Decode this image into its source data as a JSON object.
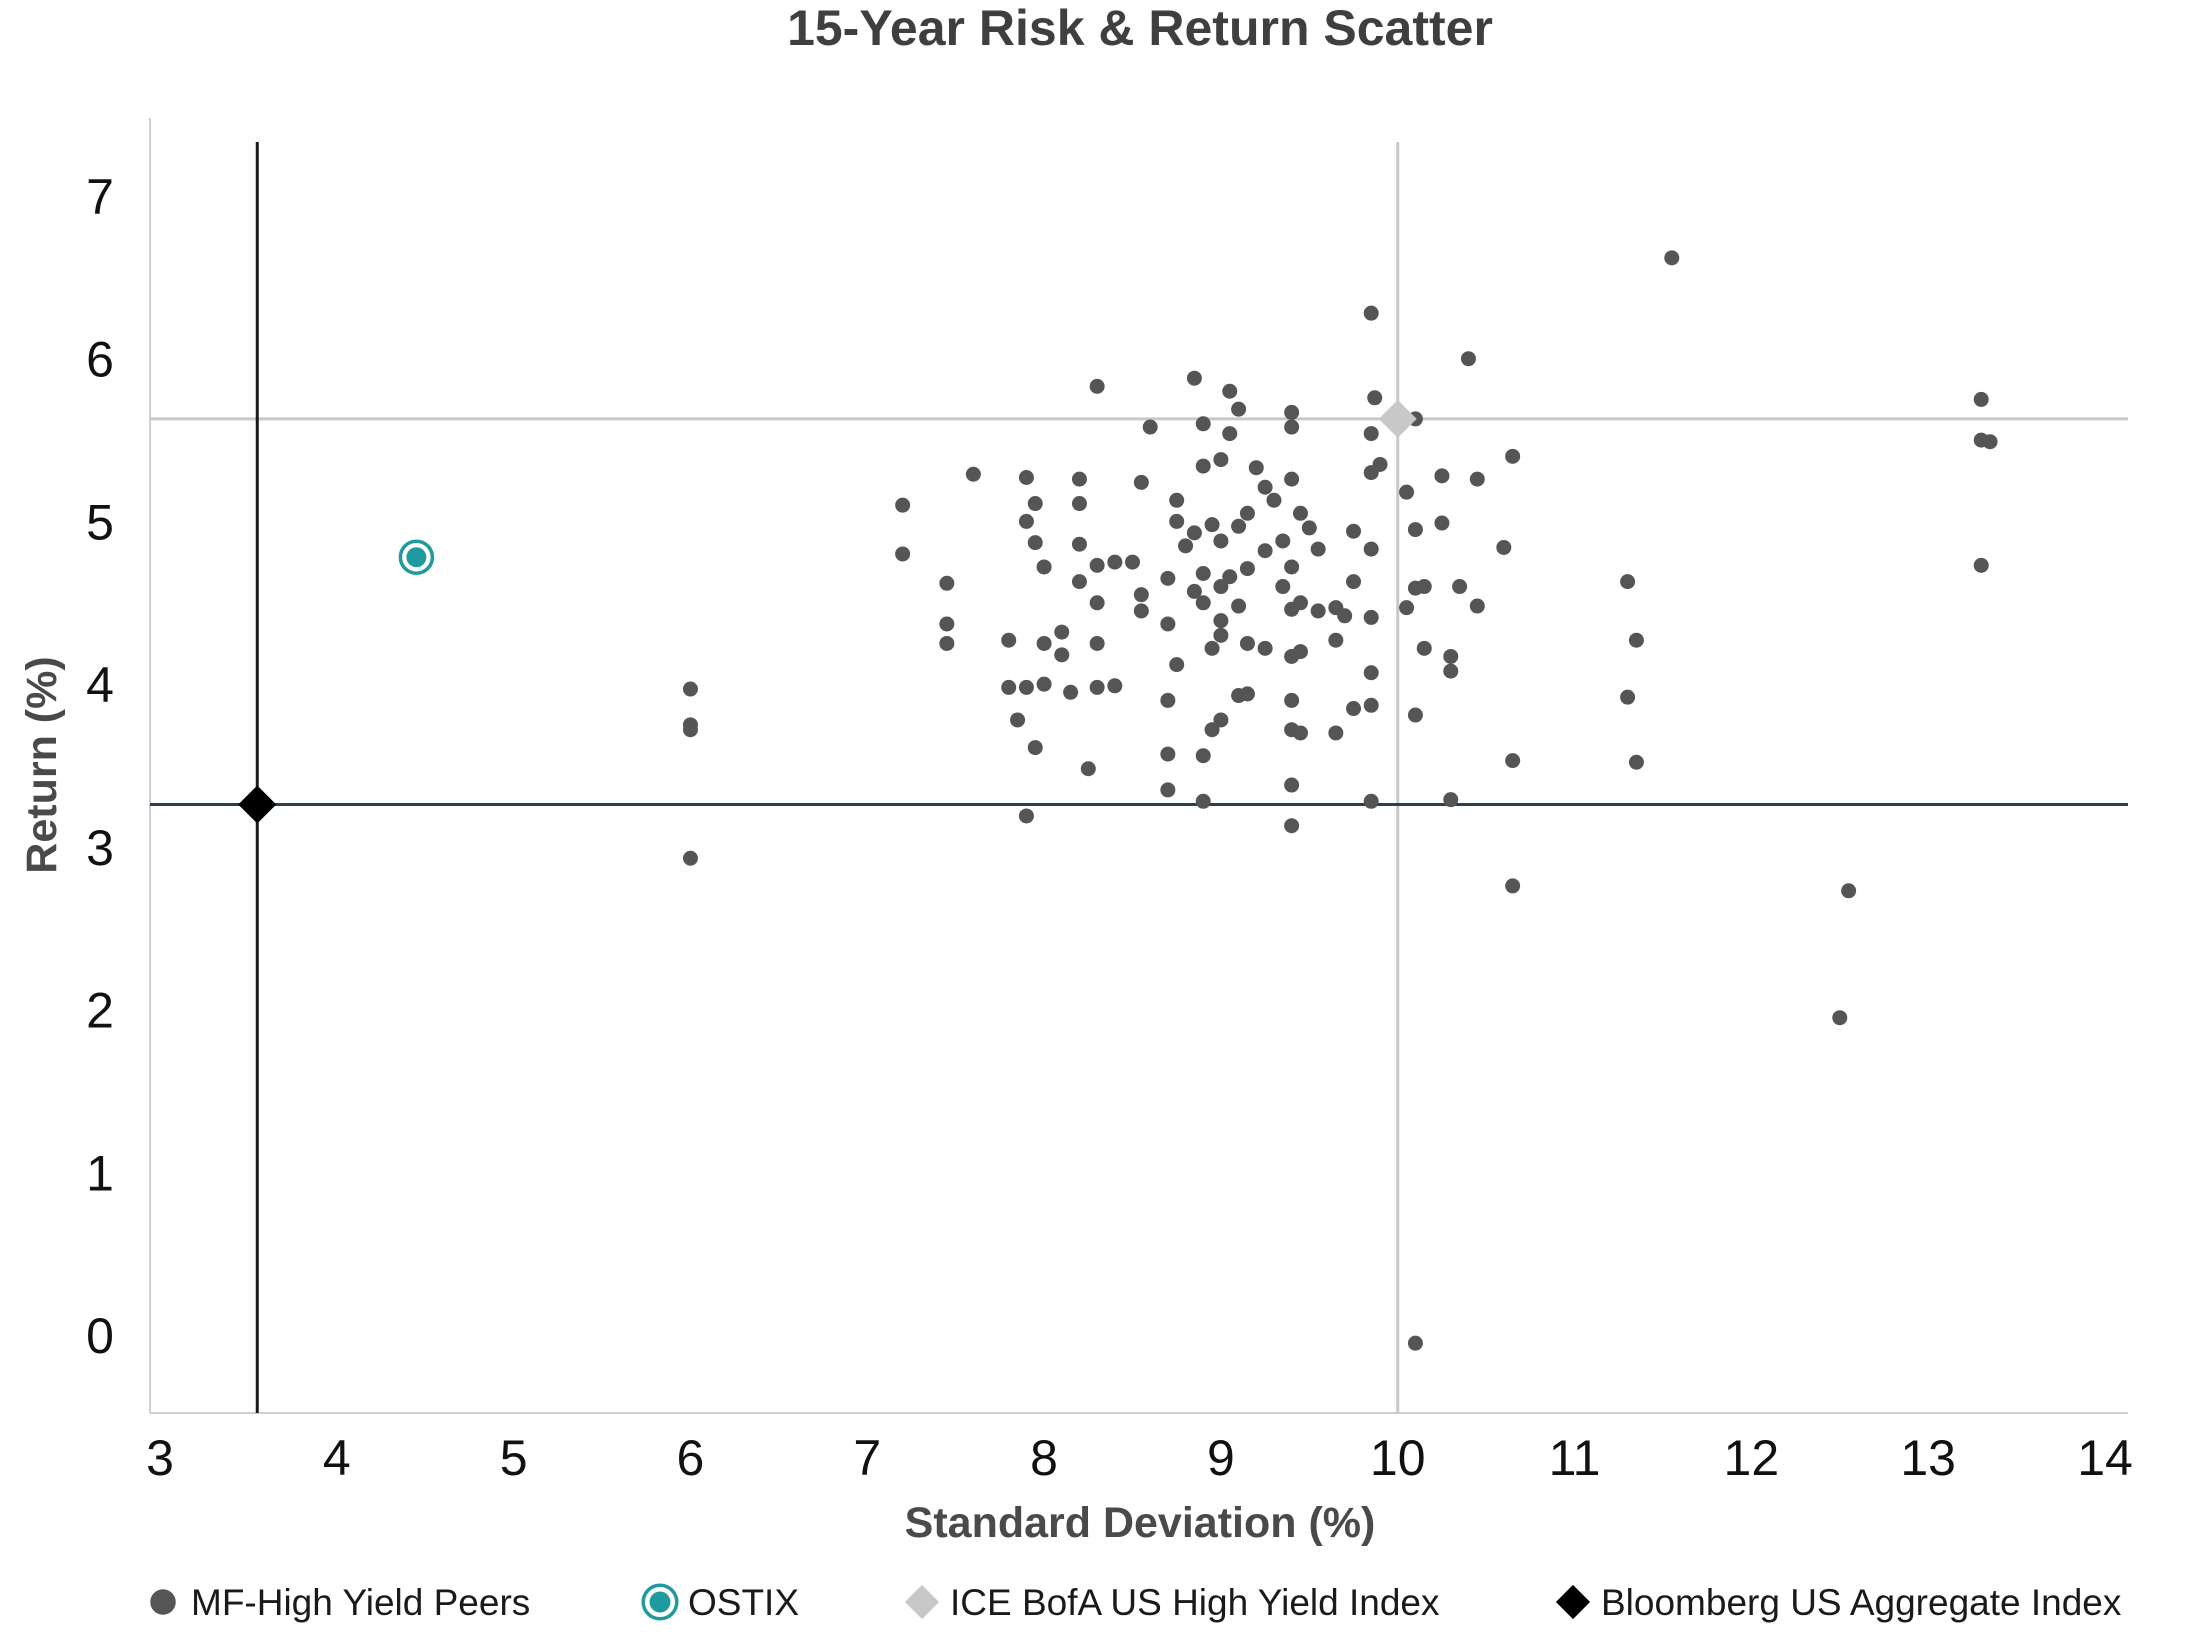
{
  "chart_data": {
    "type": "scatter",
    "title": "15-Year Risk & Return Scatter",
    "xlabel": "Standard Deviation (%)",
    "ylabel": "Return (%)",
    "xlim": [
      3,
      14
    ],
    "ylim": [
      -0.5,
      7.5
    ],
    "x_ticks": [
      3,
      4,
      5,
      6,
      7,
      8,
      9,
      10,
      11,
      12,
      13,
      14
    ],
    "y_ticks": [
      0,
      1,
      2,
      3,
      4,
      5,
      6,
      7
    ],
    "grid": false,
    "legend_position": "bottom",
    "reference_lines": [
      {
        "series": "ICE BofA US High Yield Index",
        "orientation": "vertical",
        "value": 10.0,
        "color": "#c8c8c8"
      },
      {
        "series": "ICE BofA US High Yield Index",
        "orientation": "horizontal",
        "value": 5.63,
        "color": "#c8c8c8"
      },
      {
        "series": "Bloomberg US Aggregate Index",
        "orientation": "vertical",
        "value": 3.55,
        "color": "#1a1a1a"
      },
      {
        "series": "Bloomberg US Aggregate Index",
        "orientation": "horizontal",
        "value": 3.26,
        "color": "#2c3e50"
      }
    ],
    "series": [
      {
        "name": "MF-High Yield Peers",
        "marker": "circle",
        "color": "#555555",
        "points": [
          [
            11.55,
            6.62
          ],
          [
            9.85,
            6.28
          ],
          [
            10.4,
            6.0
          ],
          [
            8.3,
            5.83
          ],
          [
            8.85,
            5.88
          ],
          [
            9.05,
            5.8
          ],
          [
            9.1,
            5.69
          ],
          [
            9.4,
            5.67
          ],
          [
            9.87,
            5.76
          ],
          [
            10.1,
            5.63
          ],
          [
            8.6,
            5.58
          ],
          [
            8.9,
            5.6
          ],
          [
            9.05,
            5.54
          ],
          [
            9.4,
            5.58
          ],
          [
            9.85,
            5.54
          ],
          [
            9.0,
            5.38
          ],
          [
            8.9,
            5.34
          ],
          [
            9.2,
            5.33
          ],
          [
            9.85,
            5.3
          ],
          [
            9.9,
            5.35
          ],
          [
            10.65,
            5.4
          ],
          [
            7.6,
            5.29
          ],
          [
            7.9,
            5.27
          ],
          [
            8.2,
            5.26
          ],
          [
            8.55,
            5.24
          ],
          [
            9.25,
            5.21
          ],
          [
            9.4,
            5.26
          ],
          [
            10.25,
            5.28
          ],
          [
            10.45,
            5.26
          ],
          [
            10.05,
            5.18
          ],
          [
            7.2,
            5.1
          ],
          [
            7.95,
            5.11
          ],
          [
            8.2,
            5.11
          ],
          [
            8.75,
            5.13
          ],
          [
            9.15,
            5.05
          ],
          [
            9.3,
            5.13
          ],
          [
            9.45,
            5.05
          ],
          [
            7.9,
            5.0
          ],
          [
            8.75,
            5.0
          ],
          [
            8.85,
            4.93
          ],
          [
            8.95,
            4.98
          ],
          [
            9.1,
            4.97
          ],
          [
            9.35,
            4.88
          ],
          [
            9.5,
            4.96
          ],
          [
            9.75,
            4.94
          ],
          [
            10.1,
            4.95
          ],
          [
            10.25,
            4.99
          ],
          [
            7.95,
            4.87
          ],
          [
            8.2,
            4.86
          ],
          [
            8.8,
            4.85
          ],
          [
            9.0,
            4.88
          ],
          [
            9.25,
            4.82
          ],
          [
            9.55,
            4.83
          ],
          [
            9.85,
            4.83
          ],
          [
            10.6,
            4.84
          ],
          [
            7.2,
            4.8
          ],
          [
            8.0,
            4.72
          ],
          [
            8.3,
            4.73
          ],
          [
            8.4,
            4.75
          ],
          [
            8.5,
            4.75
          ],
          [
            8.7,
            4.65
          ],
          [
            8.9,
            4.68
          ],
          [
            9.05,
            4.66
          ],
          [
            9.15,
            4.71
          ],
          [
            9.4,
            4.72
          ],
          [
            9.75,
            4.63
          ],
          [
            10.1,
            4.59
          ],
          [
            10.35,
            4.6
          ],
          [
            11.3,
            4.63
          ],
          [
            7.45,
            4.62
          ],
          [
            8.2,
            4.63
          ],
          [
            8.55,
            4.55
          ],
          [
            8.85,
            4.57
          ],
          [
            9.0,
            4.6
          ],
          [
            9.35,
            4.6
          ],
          [
            10.15,
            4.6
          ],
          [
            8.3,
            4.5
          ],
          [
            8.55,
            4.45
          ],
          [
            8.9,
            4.5
          ],
          [
            9.1,
            4.48
          ],
          [
            9.4,
            4.46
          ],
          [
            9.65,
            4.47
          ],
          [
            9.45,
            4.5
          ],
          [
            10.05,
            4.47
          ],
          [
            10.45,
            4.48
          ],
          [
            7.45,
            4.37
          ],
          [
            8.7,
            4.37
          ],
          [
            9.0,
            4.39
          ],
          [
            9.55,
            4.45
          ],
          [
            9.7,
            4.42
          ],
          [
            9.85,
            4.41
          ],
          [
            7.45,
            4.25
          ],
          [
            7.8,
            4.27
          ],
          [
            8.0,
            4.25
          ],
          [
            8.3,
            4.25
          ],
          [
            8.1,
            4.18
          ],
          [
            8.1,
            4.32
          ],
          [
            8.75,
            4.12
          ],
          [
            8.95,
            4.22
          ],
          [
            9.15,
            4.25
          ],
          [
            9.25,
            4.22
          ],
          [
            9.4,
            4.17
          ],
          [
            9.45,
            4.2
          ],
          [
            9.65,
            4.27
          ],
          [
            9.85,
            4.07
          ],
          [
            10.15,
            4.22
          ],
          [
            10.3,
            4.17
          ],
          [
            10.3,
            4.08
          ],
          [
            11.35,
            4.27
          ],
          [
            9.0,
            4.3
          ],
          [
            7.8,
            3.98
          ],
          [
            7.9,
            3.98
          ],
          [
            8.0,
            4.0
          ],
          [
            8.15,
            3.95
          ],
          [
            8.3,
            3.98
          ],
          [
            8.4,
            3.99
          ],
          [
            8.7,
            3.9
          ],
          [
            9.1,
            3.93
          ],
          [
            9.15,
            3.94
          ],
          [
            9.4,
            3.9
          ],
          [
            9.75,
            3.85
          ],
          [
            9.85,
            3.87
          ],
          [
            11.3,
            3.92
          ],
          [
            6.0,
            3.97
          ],
          [
            6.0,
            3.75
          ],
          [
            6.0,
            3.72
          ],
          [
            7.85,
            3.78
          ],
          [
            8.95,
            3.72
          ],
          [
            9.0,
            3.78
          ],
          [
            9.4,
            3.72
          ],
          [
            9.45,
            3.7
          ],
          [
            9.65,
            3.7
          ],
          [
            10.1,
            3.81
          ],
          [
            7.95,
            3.61
          ],
          [
            8.7,
            3.57
          ],
          [
            8.9,
            3.56
          ],
          [
            8.25,
            3.48
          ],
          [
            10.65,
            3.53
          ],
          [
            11.35,
            3.52
          ],
          [
            9.4,
            3.38
          ],
          [
            8.7,
            3.35
          ],
          [
            8.9,
            3.28
          ],
          [
            9.85,
            3.28
          ],
          [
            10.3,
            3.29
          ],
          [
            7.9,
            3.19
          ],
          [
            9.4,
            3.13
          ],
          [
            6.0,
            2.93
          ],
          [
            10.65,
            2.76
          ],
          [
            12.55,
            2.73
          ],
          [
            12.5,
            1.95
          ],
          [
            10.1,
            -0.05
          ],
          [
            13.3,
            5.75
          ],
          [
            13.3,
            5.5
          ],
          [
            13.35,
            5.49
          ],
          [
            13.3,
            4.73
          ]
        ]
      },
      {
        "name": "OSTIX",
        "marker": "ring-dot",
        "color": "#1f9a9e",
        "points": [
          [
            4.45,
            4.78
          ]
        ]
      },
      {
        "name": "ICE BofA US High Yield Index",
        "marker": "diamond",
        "color": "#c8c8c8",
        "points": [
          [
            10.0,
            5.63
          ]
        ]
      },
      {
        "name": "Bloomberg US Aggregate Index",
        "marker": "diamond",
        "color": "#000000",
        "points": [
          [
            3.55,
            3.26
          ]
        ]
      }
    ]
  }
}
